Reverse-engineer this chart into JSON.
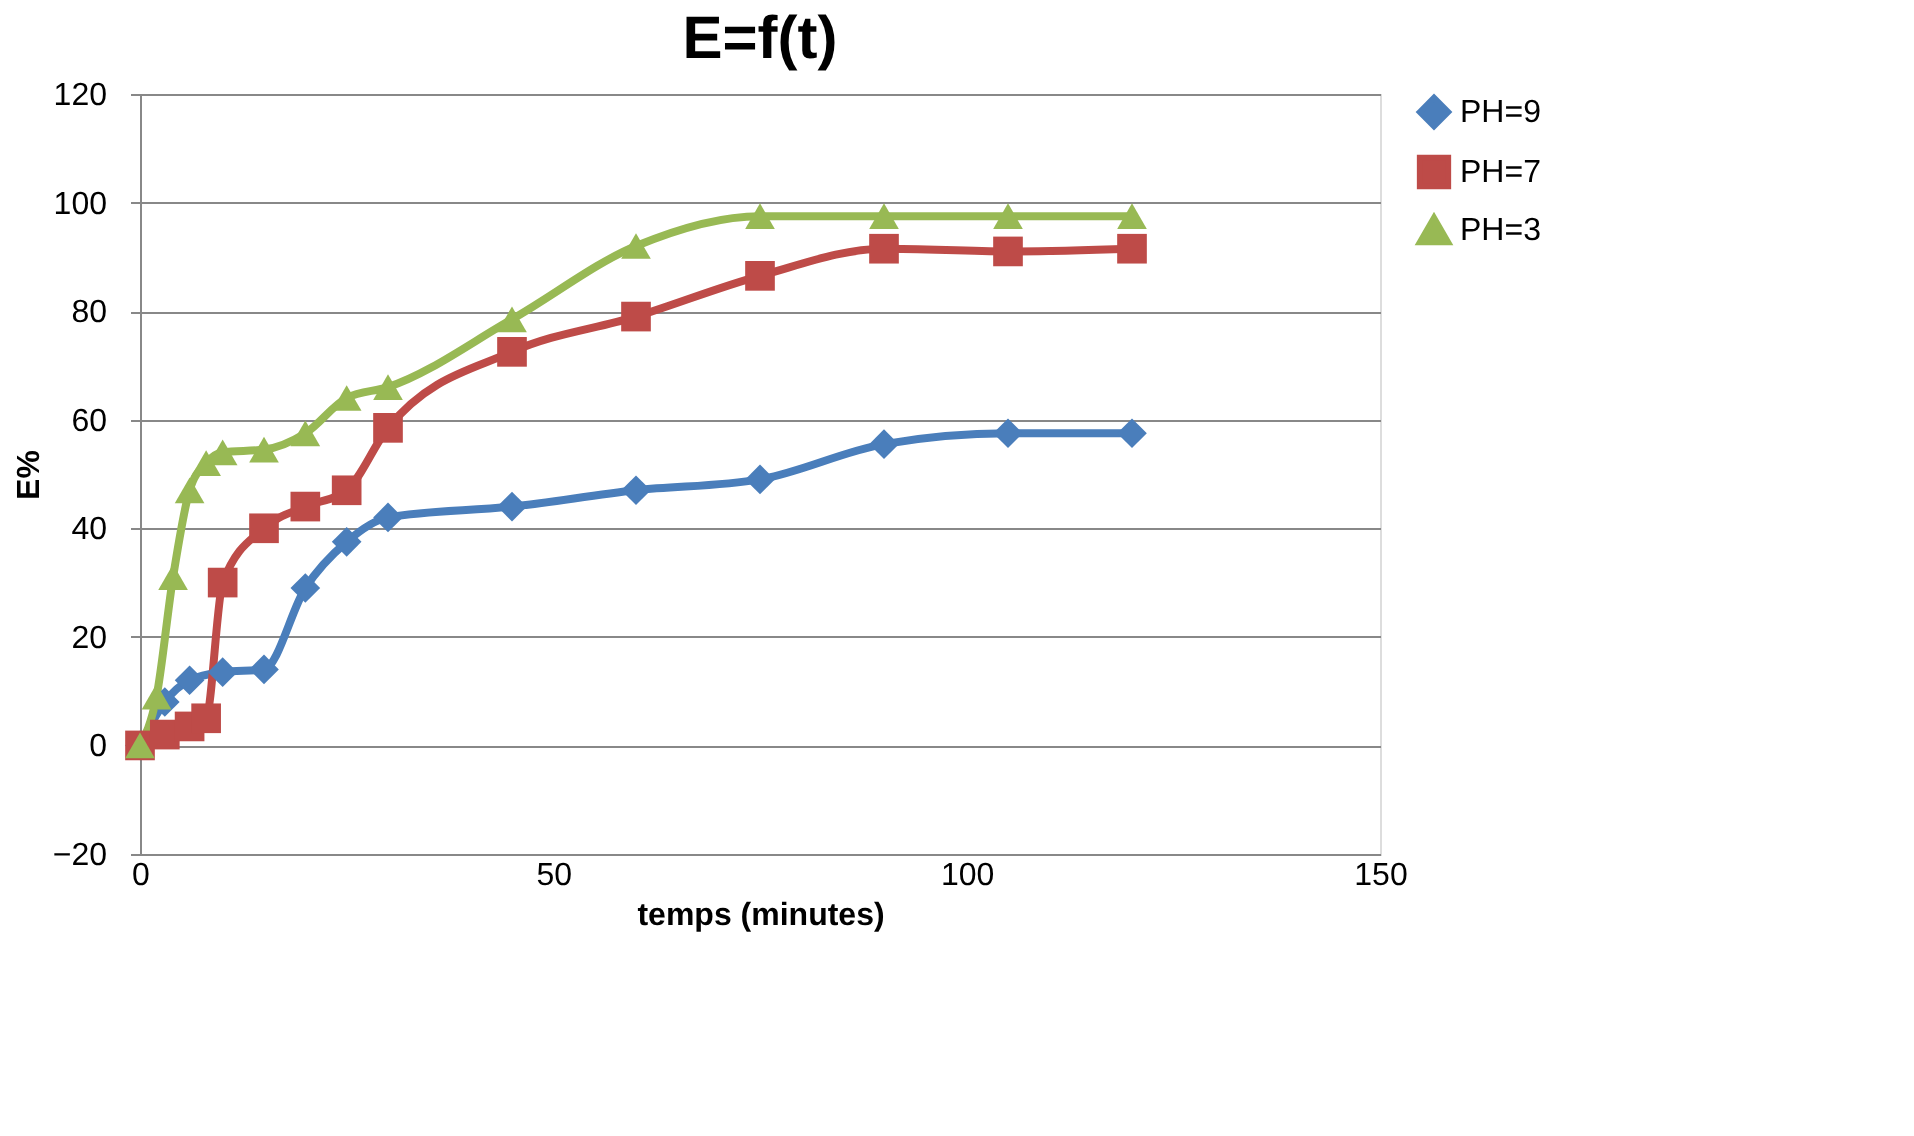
{
  "chart_data": {
    "type": "line",
    "title": "E=f(t)",
    "xlabel": "temps (minutes)",
    "ylabel": "E%",
    "xlim": [
      0,
      150
    ],
    "xticks": [
      0,
      50,
      100,
      150
    ],
    "ylim": [
      -20,
      120
    ],
    "yticks": [
      -20,
      0,
      20,
      40,
      60,
      80,
      100,
      120
    ],
    "grid": "y",
    "legend": "right",
    "series": [
      {
        "name": "PH=9",
        "color": "#4a7ebb",
        "marker": "diamond",
        "x": [
          0,
          3,
          6,
          10,
          15,
          20,
          25,
          30,
          45,
          60,
          75,
          90,
          105,
          120
        ],
        "values": [
          0,
          8,
          12,
          13.5,
          14,
          29,
          37.5,
          42,
          44,
          47,
          49,
          55.5,
          57.5,
          57.5
        ]
      },
      {
        "name": "PH=7",
        "color": "#be4b48",
        "marker": "square",
        "x": [
          0,
          3,
          6,
          8,
          10,
          15,
          20,
          25,
          30,
          45,
          60,
          75,
          90,
          105,
          120
        ],
        "values": [
          0,
          2,
          3.5,
          5,
          30,
          40,
          44,
          47,
          58.5,
          72.5,
          79,
          86.5,
          91.5,
          91,
          91.5
        ]
      },
      {
        "name": "PH=3",
        "color": "#98b954",
        "marker": "triangle",
        "x": [
          0,
          2,
          4,
          6,
          8,
          10,
          15,
          20,
          25,
          30,
          45,
          60,
          75,
          90,
          105,
          120
        ],
        "values": [
          0,
          9,
          31,
          47,
          52,
          54,
          54.5,
          57.5,
          64,
          66,
          78.5,
          92,
          97.5,
          97.5,
          97.5,
          97.5
        ]
      }
    ]
  }
}
